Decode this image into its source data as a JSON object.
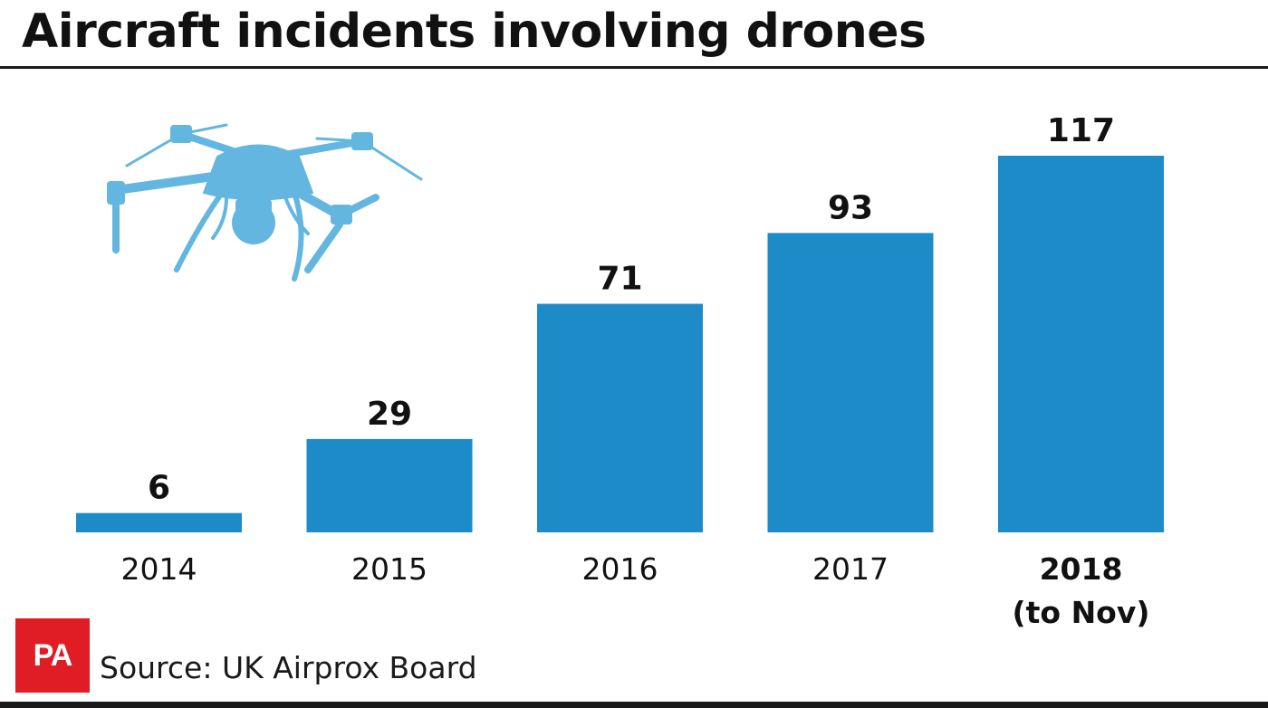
{
  "header": {
    "title": "Aircraft incidents involving drones"
  },
  "colors": {
    "bar": "#1c8bc8",
    "drone": "#62b6e0",
    "brand": "#e01d25",
    "text": "#111111"
  },
  "icons": {
    "illustration": "drone-icon"
  },
  "chart_data": {
    "type": "bar",
    "title": "Aircraft incidents involving drones",
    "categories": [
      "2014",
      "2015",
      "2016",
      "2017",
      "2018"
    ],
    "category_sublabels": [
      "",
      "",
      "",
      "",
      "(to Nov)"
    ],
    "values": [
      6,
      29,
      71,
      93,
      117
    ],
    "data_labels": [
      "6",
      "29",
      "71",
      "93",
      "117"
    ],
    "highlight_category": "2018",
    "ylim": [
      0,
      117
    ],
    "grid": false,
    "legend": "none"
  },
  "footer": {
    "logo_text": "PA",
    "source": "Source: UK Airprox Board"
  }
}
